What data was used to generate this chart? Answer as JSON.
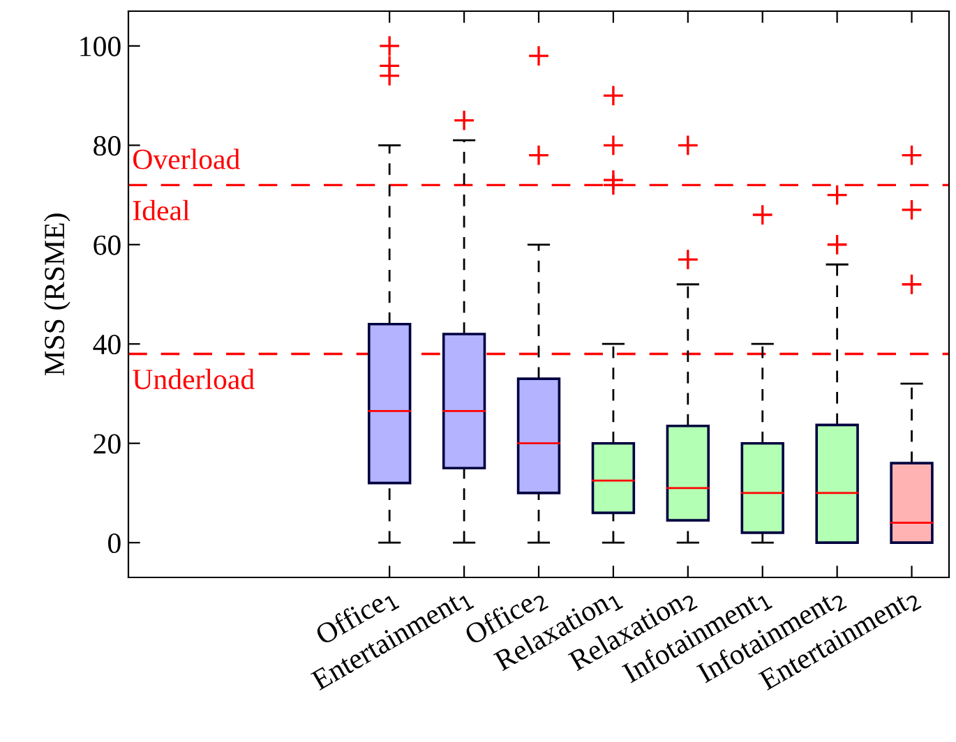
{
  "chart_data": {
    "type": "box",
    "ylabel": "MSS (RSME)",
    "categories": [
      null,
      null,
      null,
      "Office$_{1}$",
      "Entertainment$_{1}$",
      "Office$_{2}$",
      "Relaxation$_{1}$",
      "Relaxation$_{2}$",
      "Infotainment$_{1}$",
      "Infotainment$_{2}$",
      "Entertainment$_{2}$"
    ],
    "colors": [
      null,
      null,
      null,
      "#b3b3ff",
      "#b3b3ff",
      "#b3b3ff",
      "#b3ffb3",
      "#b3ffb3",
      "#b3ffb3",
      "#b3ffb3",
      "#ffb3b3"
    ],
    "boxes": [
      null,
      null,
      null,
      {
        "low": 0,
        "q1": 12,
        "median": 26.5,
        "q3": 44,
        "high": 80,
        "outliers": [
          100,
          96,
          94
        ]
      },
      {
        "low": 0,
        "q1": 15,
        "median": 26.5,
        "q3": 42,
        "high": 81,
        "outliers": [
          85
        ]
      },
      {
        "low": 0,
        "q1": 10,
        "median": 20,
        "q3": 33,
        "high": 60,
        "outliers": [
          98,
          78
        ]
      },
      {
        "low": 0,
        "q1": 6,
        "median": 12.5,
        "q3": 20,
        "high": 40,
        "outliers": [
          90,
          80,
          73,
          72
        ]
      },
      {
        "low": 0,
        "q1": 4.5,
        "median": 11,
        "q3": 23.5,
        "high": 52,
        "outliers": [
          80,
          57
        ]
      },
      {
        "low": 0,
        "q1": 2,
        "median": 10,
        "q3": 20,
        "high": 40,
        "outliers": [
          66
        ]
      },
      {
        "low": 0,
        "q1": 0,
        "median": 10,
        "q3": 23.7,
        "high": 56,
        "outliers": [
          70,
          60
        ]
      },
      {
        "low": 0,
        "q1": 0,
        "median": 4,
        "q3": 16,
        "high": 32,
        "outliers": [
          78,
          67,
          52
        ]
      }
    ],
    "marker": "cross",
    "ylim": [
      -7,
      107
    ],
    "yticks": [
      0,
      20,
      40,
      60,
      80,
      100
    ],
    "ref_lines": [
      {
        "axis": "y",
        "value": 72,
        "label": "Overload",
        "color": "#ff0000",
        "line_style": "dashed"
      },
      {
        "axis": "y",
        "value": 38,
        "label": "Underload",
        "color": "#ff0000",
        "line_style": "dashed"
      }
    ],
    "annotations": [
      "Ideal"
    ],
    "grid": false,
    "legend": false
  }
}
